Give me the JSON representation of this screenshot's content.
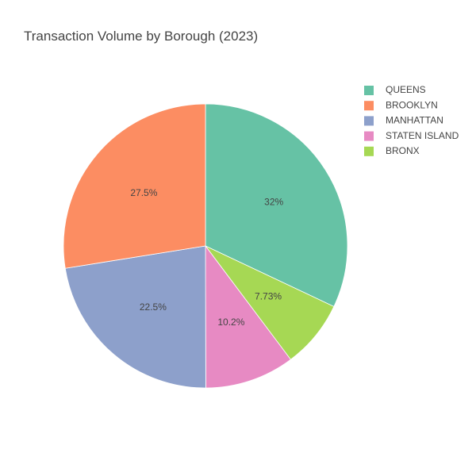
{
  "chart_data": {
    "type": "pie",
    "title": "Transaction Volume by Borough (2023)",
    "direction": "clockwise",
    "start": "top",
    "legend_position": "top-right",
    "series": [
      {
        "name": "QUEENS",
        "percent": 32.0,
        "label": "32%",
        "color": "#66c2a5"
      },
      {
        "name": "BROOKLYN",
        "percent": 27.5,
        "label": "27.5%",
        "color": "#fc8d62"
      },
      {
        "name": "MANHATTAN",
        "percent": 22.5,
        "label": "22.5%",
        "color": "#8da0cb"
      },
      {
        "name": "STATEN ISLAND",
        "percent": 10.2,
        "label": "10.2%",
        "color": "#e78ac3"
      },
      {
        "name": "BRONX",
        "percent": 7.73,
        "label": "7.73%",
        "color": "#a6d854"
      }
    ],
    "slice_order": [
      "QUEENS",
      "BRONX",
      "STATEN ISLAND",
      "MANHATTAN",
      "BROOKLYN"
    ]
  }
}
